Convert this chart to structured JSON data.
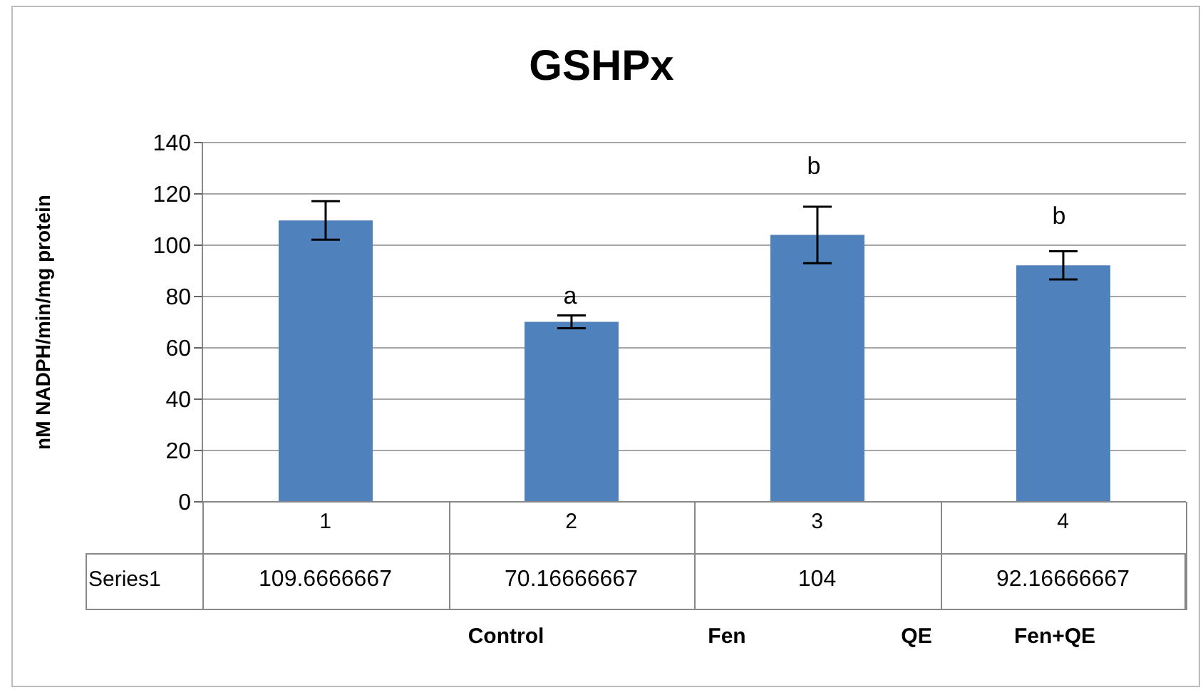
{
  "chart_data": {
    "type": "bar",
    "title": "GSHPx",
    "ylabel": "nM  NADPH/min/mg protein",
    "categories": [
      "1",
      "2",
      "3",
      "4"
    ],
    "series": [
      {
        "name": "Series1",
        "color": "#4f81bd",
        "values": [
          109.6666667,
          70.16666667,
          104,
          92.16666667
        ],
        "errors": [
          7.5,
          2.5,
          11,
          5.5
        ],
        "value_labels": [
          "109.6666667",
          "70.16666667",
          "104",
          "92.16666667"
        ]
      }
    ],
    "ylim": [
      0,
      140
    ],
    "yticks": [
      0,
      20,
      40,
      60,
      80,
      100,
      120,
      140
    ],
    "grid": "y",
    "legend": false,
    "annotations": [
      "a",
      "b",
      "b",
      "Control",
      "Fen",
      "QE",
      "Fen+QE"
    ]
  }
}
